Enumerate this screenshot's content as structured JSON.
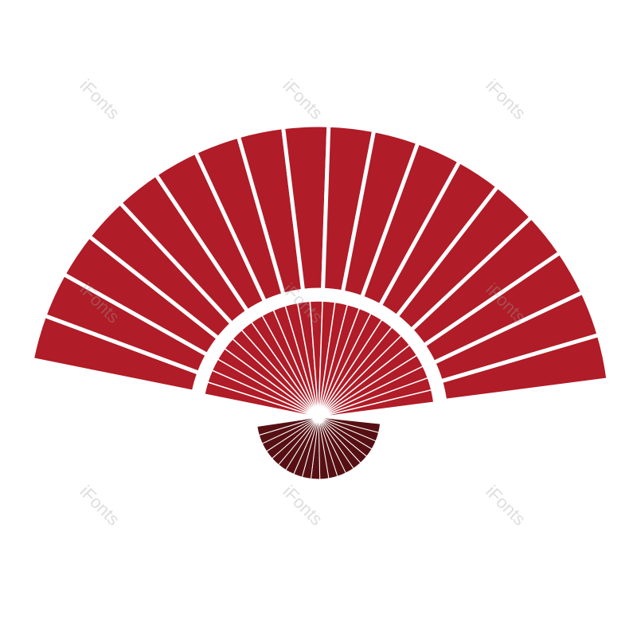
{
  "watermark": {
    "text": "iFonts"
  },
  "colors": {
    "fan": "#b01c27",
    "handle": "#561013",
    "background": "#ffffff",
    "gap": "#ffffff"
  },
  "fan": {
    "outer_panels": 18,
    "inner_ribs": 26,
    "handle_ribs": 20
  }
}
